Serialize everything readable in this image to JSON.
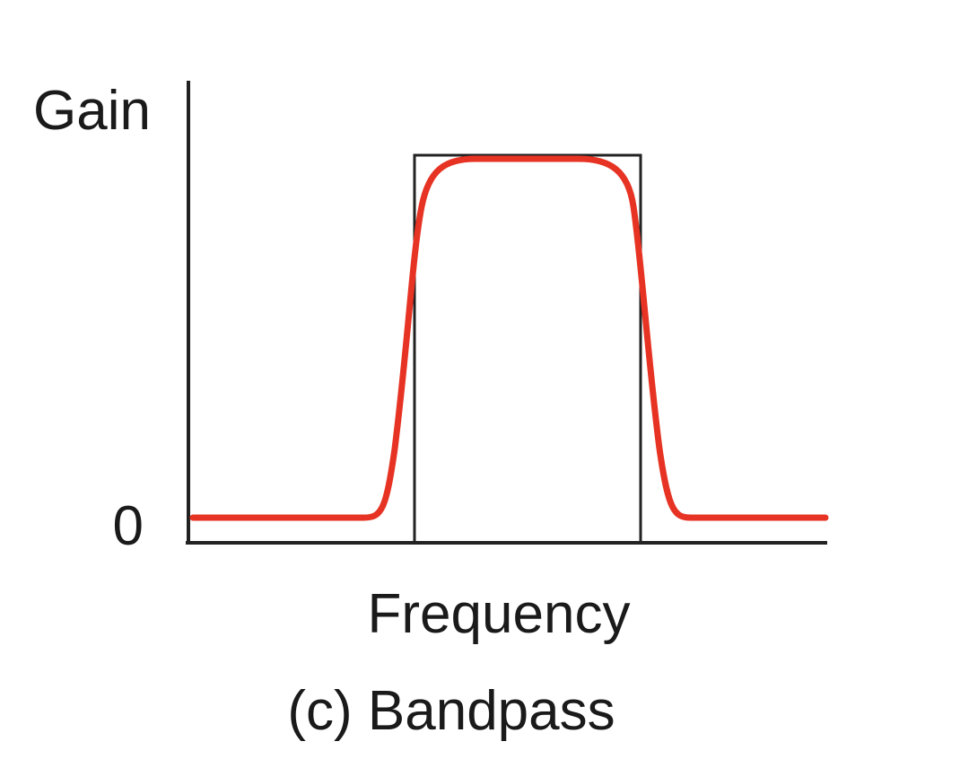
{
  "axes": {
    "y_label": "Gain",
    "zero_label": "0",
    "x_label": "Frequency"
  },
  "caption": "(c) Bandpass"
}
